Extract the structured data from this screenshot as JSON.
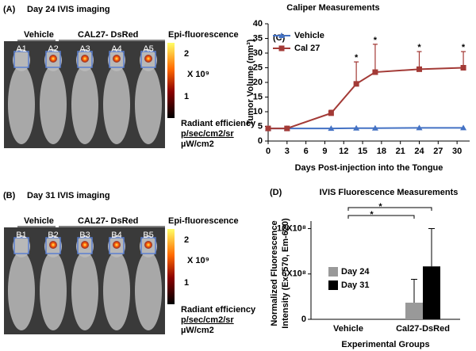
{
  "panels": [
    {
      "label": "(A)",
      "title": "Day 24 IVIS imaging",
      "groups": [
        "Vehicle",
        "CAL27- DsRed"
      ],
      "subjects": [
        "A1",
        "A2",
        "A3",
        "A4",
        "A5"
      ],
      "legend": {
        "title": "Epi-fluorescence",
        "ticks": [
          2,
          1
        ],
        "multiplier": "X 10⁹",
        "unit_lines": [
          "Radiant efficiency",
          "p/sec/cm2/sr",
          "µW/cm2"
        ]
      }
    },
    {
      "label": "(B)",
      "title": "Day 31 IVIS imaging",
      "groups": [
        "Vehicle",
        "CAL27- DsRed"
      ],
      "subjects": [
        "B1",
        "B2",
        "B3",
        "B4",
        "B5"
      ],
      "legend": {
        "title": "Epi-fluorescence",
        "ticks": [
          2,
          1
        ],
        "multiplier": "X 10⁹",
        "unit_lines": [
          "Radiant efficiency",
          "p/sec/cm2/sr",
          "µW/cm2"
        ]
      }
    }
  ],
  "chart_data": [
    {
      "type": "line",
      "label": "(C)",
      "title": "Caliper Measurements",
      "xlabel": "Days Post-injection into the Tongue",
      "ylabel": "Tumor Volume (mm³)",
      "x": [
        0,
        3,
        10,
        14,
        17,
        24,
        31
      ],
      "series": [
        {
          "name": "Vehicle",
          "color": "#4472c4",
          "marker": "triangle",
          "values": [
            4.3,
            4.3,
            4.3,
            4.4,
            4.4,
            4.5,
            4.5
          ]
        },
        {
          "name": "Cal 27",
          "color": "#a33a36",
          "marker": "square",
          "values": [
            4.3,
            4.3,
            9.5,
            19.5,
            23.5,
            24.5,
            25
          ],
          "errors": [
            null,
            null,
            1,
            7.5,
            9.5,
            6,
            5.5
          ]
        }
      ],
      "annotations": [
        {
          "text": "*",
          "x": 14
        },
        {
          "text": "*",
          "x": 17
        },
        {
          "text": "*",
          "x": 24
        },
        {
          "text": "*",
          "x": 31
        }
      ],
      "xlim": [
        0,
        32
      ],
      "xticks": [
        0,
        3,
        6,
        9,
        12,
        15,
        18,
        21,
        24,
        27,
        30
      ],
      "ylim": [
        0,
        40
      ],
      "yticks": [
        0,
        5,
        10,
        15,
        20,
        25,
        30,
        35,
        40
      ],
      "legend": "upper left"
    },
    {
      "type": "bar",
      "label": "(D)",
      "title": "IVIS Fluorescence Measurements",
      "xlabel": "Experimental Groups",
      "ylabel": [
        "Normalized Fluorescence",
        "Intensity (Ex- 570, Em-620)"
      ],
      "categories": [
        "Vehicle",
        "Cal27-DsRed"
      ],
      "series": [
        {
          "name": "Day 24",
          "color": "#999999",
          "values": [
            0,
            220000000
          ],
          "errors": [
            null,
            310000000
          ]
        },
        {
          "name": "Day 31",
          "color": "#000000",
          "values": [
            0,
            700000000
          ],
          "errors": [
            null,
            500000000
          ]
        }
      ],
      "annotations": [
        "*",
        "*"
      ],
      "ylim": [
        0,
        1300000000
      ],
      "yticks": [
        0,
        {
          "value": 600000000,
          "label": "6X10⁸"
        },
        {
          "value": 1200000000,
          "label": "12X10⁸"
        }
      ],
      "legend": "center left"
    }
  ]
}
